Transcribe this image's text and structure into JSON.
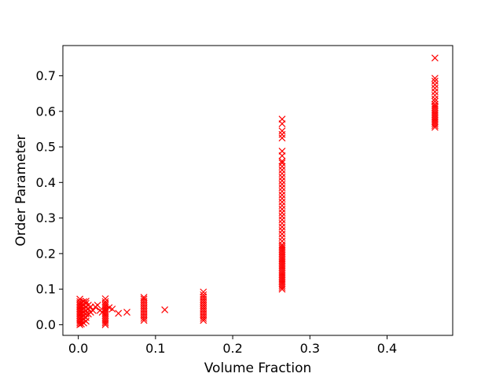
{
  "chart_data": {
    "type": "scatter",
    "title": "",
    "xlabel": "Volume Fraction",
    "ylabel": "Order Parameter",
    "xlim": [
      -0.02,
      0.485
    ],
    "ylim": [
      -0.03,
      0.785
    ],
    "xticks": [
      0.0,
      0.1,
      0.2,
      0.3,
      0.4
    ],
    "xtick_labels": [
      "0.0",
      "0.1",
      "0.2",
      "0.3",
      "0.4"
    ],
    "yticks": [
      0.0,
      0.1,
      0.2,
      0.3,
      0.4,
      0.5,
      0.6,
      0.7
    ],
    "ytick_labels": [
      "0.0",
      "0.1",
      "0.2",
      "0.3",
      "0.4",
      "0.5",
      "0.6",
      "0.7"
    ],
    "grid": false,
    "legend": "none",
    "marker": "x",
    "color": "#ff0000",
    "series": [
      {
        "points": [
          [
            0.002,
            0.0
          ],
          [
            0.002,
            0.005
          ],
          [
            0.002,
            0.01
          ],
          [
            0.002,
            0.015
          ],
          [
            0.002,
            0.02
          ],
          [
            0.002,
            0.025
          ],
          [
            0.002,
            0.03
          ],
          [
            0.002,
            0.035
          ],
          [
            0.002,
            0.04
          ],
          [
            0.002,
            0.045
          ],
          [
            0.002,
            0.05
          ],
          [
            0.002,
            0.055
          ],
          [
            0.002,
            0.06
          ],
          [
            0.002,
            0.065
          ],
          [
            0.002,
            0.072
          ],
          [
            0.004,
            0.002
          ],
          [
            0.004,
            0.012
          ],
          [
            0.004,
            0.022
          ],
          [
            0.004,
            0.032
          ],
          [
            0.004,
            0.042
          ],
          [
            0.004,
            0.052
          ],
          [
            0.004,
            0.062
          ],
          [
            0.007,
            0.005
          ],
          [
            0.007,
            0.015
          ],
          [
            0.007,
            0.025
          ],
          [
            0.007,
            0.035
          ],
          [
            0.007,
            0.045
          ],
          [
            0.007,
            0.055
          ],
          [
            0.007,
            0.065
          ],
          [
            0.01,
            0.01
          ],
          [
            0.01,
            0.02
          ],
          [
            0.01,
            0.03
          ],
          [
            0.01,
            0.04
          ],
          [
            0.01,
            0.05
          ],
          [
            0.01,
            0.06
          ],
          [
            0.01,
            0.066
          ],
          [
            0.013,
            0.03
          ],
          [
            0.013,
            0.045
          ],
          [
            0.013,
            0.055
          ],
          [
            0.016,
            0.035
          ],
          [
            0.016,
            0.05
          ],
          [
            0.019,
            0.04
          ],
          [
            0.022,
            0.05
          ],
          [
            0.025,
            0.055
          ],
          [
            0.028,
            0.04
          ],
          [
            0.031,
            0.035
          ],
          [
            0.035,
            0.0
          ],
          [
            0.035,
            0.005
          ],
          [
            0.035,
            0.01
          ],
          [
            0.035,
            0.015
          ],
          [
            0.035,
            0.02
          ],
          [
            0.035,
            0.025
          ],
          [
            0.035,
            0.03
          ],
          [
            0.035,
            0.035
          ],
          [
            0.035,
            0.04
          ],
          [
            0.035,
            0.045
          ],
          [
            0.035,
            0.05
          ],
          [
            0.035,
            0.055
          ],
          [
            0.035,
            0.06
          ],
          [
            0.035,
            0.065
          ],
          [
            0.035,
            0.073
          ],
          [
            0.04,
            0.048
          ],
          [
            0.044,
            0.044
          ],
          [
            0.052,
            0.032
          ],
          [
            0.063,
            0.035
          ],
          [
            0.085,
            0.012
          ],
          [
            0.085,
            0.018
          ],
          [
            0.085,
            0.024
          ],
          [
            0.085,
            0.03
          ],
          [
            0.085,
            0.036
          ],
          [
            0.085,
            0.042
          ],
          [
            0.085,
            0.048
          ],
          [
            0.085,
            0.054
          ],
          [
            0.085,
            0.06
          ],
          [
            0.085,
            0.066
          ],
          [
            0.085,
            0.072
          ],
          [
            0.085,
            0.077
          ],
          [
            0.112,
            0.042
          ],
          [
            0.162,
            0.012
          ],
          [
            0.162,
            0.018
          ],
          [
            0.162,
            0.024
          ],
          [
            0.162,
            0.03
          ],
          [
            0.162,
            0.036
          ],
          [
            0.162,
            0.042
          ],
          [
            0.162,
            0.048
          ],
          [
            0.162,
            0.054
          ],
          [
            0.162,
            0.06
          ],
          [
            0.162,
            0.066
          ],
          [
            0.162,
            0.072
          ],
          [
            0.162,
            0.078
          ],
          [
            0.162,
            0.084
          ],
          [
            0.162,
            0.092
          ],
          [
            0.264,
            0.1
          ],
          [
            0.264,
            0.105
          ],
          [
            0.264,
            0.11
          ],
          [
            0.264,
            0.115
          ],
          [
            0.264,
            0.12
          ],
          [
            0.264,
            0.125
          ],
          [
            0.264,
            0.13
          ],
          [
            0.264,
            0.135
          ],
          [
            0.264,
            0.14
          ],
          [
            0.264,
            0.145
          ],
          [
            0.264,
            0.15
          ],
          [
            0.264,
            0.155
          ],
          [
            0.264,
            0.16
          ],
          [
            0.264,
            0.165
          ],
          [
            0.264,
            0.17
          ],
          [
            0.264,
            0.175
          ],
          [
            0.264,
            0.18
          ],
          [
            0.264,
            0.185
          ],
          [
            0.264,
            0.19
          ],
          [
            0.264,
            0.195
          ],
          [
            0.264,
            0.2
          ],
          [
            0.264,
            0.205
          ],
          [
            0.264,
            0.21
          ],
          [
            0.264,
            0.215
          ],
          [
            0.264,
            0.22
          ],
          [
            0.264,
            0.225
          ],
          [
            0.264,
            0.235
          ],
          [
            0.264,
            0.245
          ],
          [
            0.264,
            0.255
          ],
          [
            0.264,
            0.265
          ],
          [
            0.264,
            0.275
          ],
          [
            0.264,
            0.285
          ],
          [
            0.264,
            0.295
          ],
          [
            0.264,
            0.305
          ],
          [
            0.264,
            0.315
          ],
          [
            0.264,
            0.325
          ],
          [
            0.264,
            0.335
          ],
          [
            0.264,
            0.345
          ],
          [
            0.264,
            0.355
          ],
          [
            0.264,
            0.365
          ],
          [
            0.264,
            0.375
          ],
          [
            0.264,
            0.385
          ],
          [
            0.264,
            0.395
          ],
          [
            0.264,
            0.405
          ],
          [
            0.264,
            0.415
          ],
          [
            0.264,
            0.425
          ],
          [
            0.264,
            0.435
          ],
          [
            0.264,
            0.445
          ],
          [
            0.264,
            0.455
          ],
          [
            0.264,
            0.46
          ],
          [
            0.264,
            0.475
          ],
          [
            0.264,
            0.488
          ],
          [
            0.264,
            0.525
          ],
          [
            0.264,
            0.535
          ],
          [
            0.264,
            0.545
          ],
          [
            0.264,
            0.565
          ],
          [
            0.264,
            0.578
          ],
          [
            0.462,
            0.555
          ],
          [
            0.462,
            0.56
          ],
          [
            0.462,
            0.565
          ],
          [
            0.462,
            0.57
          ],
          [
            0.462,
            0.575
          ],
          [
            0.462,
            0.58
          ],
          [
            0.462,
            0.585
          ],
          [
            0.462,
            0.59
          ],
          [
            0.462,
            0.595
          ],
          [
            0.462,
            0.6
          ],
          [
            0.462,
            0.605
          ],
          [
            0.462,
            0.61
          ],
          [
            0.462,
            0.615
          ],
          [
            0.462,
            0.62
          ],
          [
            0.462,
            0.628
          ],
          [
            0.462,
            0.635
          ],
          [
            0.462,
            0.645
          ],
          [
            0.462,
            0.655
          ],
          [
            0.462,
            0.665
          ],
          [
            0.462,
            0.675
          ],
          [
            0.462,
            0.685
          ],
          [
            0.462,
            0.693
          ],
          [
            0.462,
            0.75
          ]
        ]
      }
    ]
  }
}
